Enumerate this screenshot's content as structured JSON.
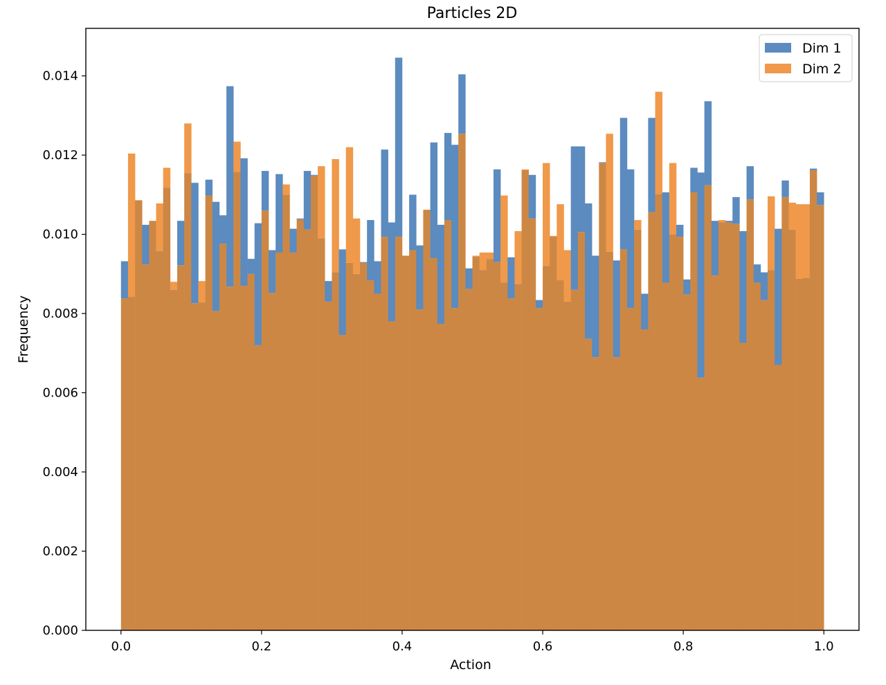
{
  "chart_data": {
    "type": "bar",
    "title": "Particles 2D",
    "xlabel": "Action",
    "ylabel": "Frequency",
    "xlim": [
      -0.05,
      1.05
    ],
    "ylim": [
      0.0,
      0.0152
    ],
    "xticks": [
      0.0,
      0.2,
      0.4,
      0.6,
      0.8,
      1.0
    ],
    "xtick_labels": [
      "0.0",
      "0.2",
      "0.4",
      "0.6",
      "0.8",
      "1.0"
    ],
    "yticks": [
      0.0,
      0.002,
      0.004,
      0.006,
      0.008,
      0.01,
      0.012,
      0.014
    ],
    "ytick_labels": [
      "0.000",
      "0.002",
      "0.004",
      "0.006",
      "0.008",
      "0.010",
      "0.012",
      "0.014"
    ],
    "legend_position": "top-right",
    "bin_range": [
      0.0,
      1.0
    ],
    "n_bins": 100,
    "overlap_color": "#cd8744",
    "series": [
      {
        "name": "Dim 1",
        "color": "#5b8bbf",
        "values": [
          0.00932,
          0.00842,
          0.01086,
          0.01024,
          0.01034,
          0.00958,
          0.01118,
          0.0086,
          0.01034,
          0.01154,
          0.0113,
          0.00828,
          0.01138,
          0.01082,
          0.01048,
          0.01374,
          0.01158,
          0.01192,
          0.00938,
          0.01028,
          0.0116,
          0.0096,
          0.01152,
          0.011,
          0.01014,
          0.0104,
          0.0116,
          0.0115,
          0.0099,
          0.00882,
          0.00904,
          0.00962,
          0.00928,
          0.009,
          0.0093,
          0.01036,
          0.00932,
          0.01214,
          0.0103,
          0.01446,
          0.00946,
          0.011,
          0.00972,
          0.01062,
          0.01232,
          0.01024,
          0.01256,
          0.01226,
          0.01404,
          0.00914,
          0.00944,
          0.0091,
          0.00938,
          0.01164,
          0.00878,
          0.00942,
          0.00875,
          0.01162,
          0.0115,
          0.00834,
          0.0092,
          0.00994,
          0.00884,
          0.0083,
          0.01222,
          0.01222,
          0.01078,
          0.00946,
          0.01182,
          0.00956,
          0.00934,
          0.01294,
          0.01164,
          0.01012,
          0.0085,
          0.01294,
          0.01102,
          0.01106,
          0.01,
          0.01024,
          0.00886,
          0.01168,
          0.01156,
          0.01336,
          0.01034,
          0.0103,
          0.01034,
          0.01094,
          0.01008,
          0.01172,
          0.00924,
          0.00904,
          0.0091,
          0.01014,
          0.01136,
          0.01012,
          0.00888,
          0.0089,
          0.01166,
          0.01106
        ]
      },
      {
        "name": "Dim 2",
        "color": "#f0994a",
        "values": [
          0.00838,
          0.01204,
          0.01086,
          0.00924,
          0.01034,
          0.01078,
          0.01168,
          0.0088,
          0.00922,
          0.0128,
          0.00826,
          0.00882,
          0.01098,
          0.00806,
          0.00976,
          0.00868,
          0.01234,
          0.0087,
          0.009,
          0.0072,
          0.0106,
          0.00852,
          0.00954,
          0.01126,
          0.00954,
          0.01038,
          0.01012,
          0.01148,
          0.01172,
          0.0083,
          0.0119,
          0.00746,
          0.0122,
          0.0104,
          0.00928,
          0.00884,
          0.0085,
          0.00994,
          0.0078,
          0.00994,
          0.00946,
          0.0096,
          0.0081,
          0.01062,
          0.0094,
          0.00774,
          0.01036,
          0.00814,
          0.01254,
          0.00862,
          0.00946,
          0.00954,
          0.00954,
          0.0093,
          0.01098,
          0.00838,
          0.01008,
          0.01164,
          0.0104,
          0.00814,
          0.0118,
          0.00996,
          0.01076,
          0.0096,
          0.0086,
          0.01006,
          0.00736,
          0.0069,
          0.0118,
          0.01254,
          0.0069,
          0.00962,
          0.00814,
          0.01036,
          0.0076,
          0.01056,
          0.0136,
          0.00878,
          0.0118,
          0.00994,
          0.00848,
          0.01106,
          0.00638,
          0.01124,
          0.00896,
          0.01036,
          0.0103,
          0.01026,
          0.00726,
          0.01088,
          0.00878,
          0.00834,
          0.01096,
          0.0067,
          0.01094,
          0.0108,
          0.01076,
          0.01076,
          0.01162,
          0.01074
        ]
      }
    ]
  }
}
